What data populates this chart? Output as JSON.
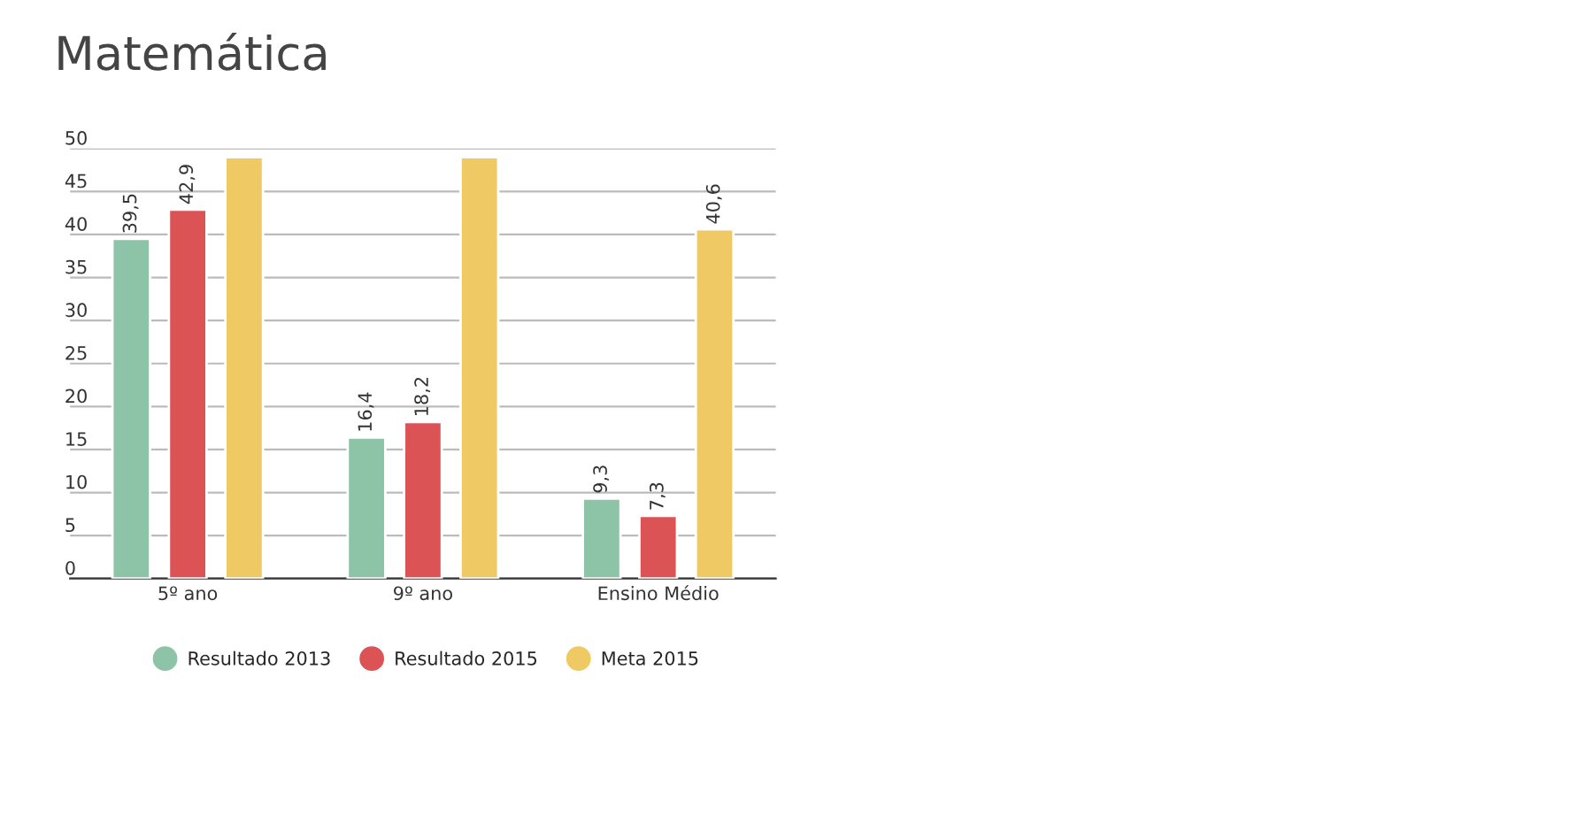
{
  "chart_data": {
    "type": "bar",
    "title": "Matemática",
    "categories": [
      "5º ano",
      "9º ano",
      "Ensino Médio"
    ],
    "series": [
      {
        "name": "Resultado 2013",
        "color": "#8dc3a7",
        "values": [
          39.5,
          16.4,
          9.3
        ],
        "value_labels": [
          "39,5",
          "16,4",
          "9,3"
        ]
      },
      {
        "name": "Resultado 2015",
        "color": "#dc5356",
        "values": [
          42.9,
          18.2,
          7.3
        ],
        "value_labels": [
          "42,9",
          "18,2",
          "7,3"
        ]
      },
      {
        "name": "Meta 2015",
        "color": "#efc964",
        "values": [
          49,
          49,
          40.6
        ],
        "value_labels": [
          null,
          null,
          "40,6"
        ]
      }
    ],
    "ylim": [
      0,
      50
    ],
    "yticks": [
      0,
      5,
      10,
      15,
      20,
      25,
      30,
      35,
      40,
      45,
      50
    ],
    "grid": "y",
    "legend": "bottom"
  }
}
